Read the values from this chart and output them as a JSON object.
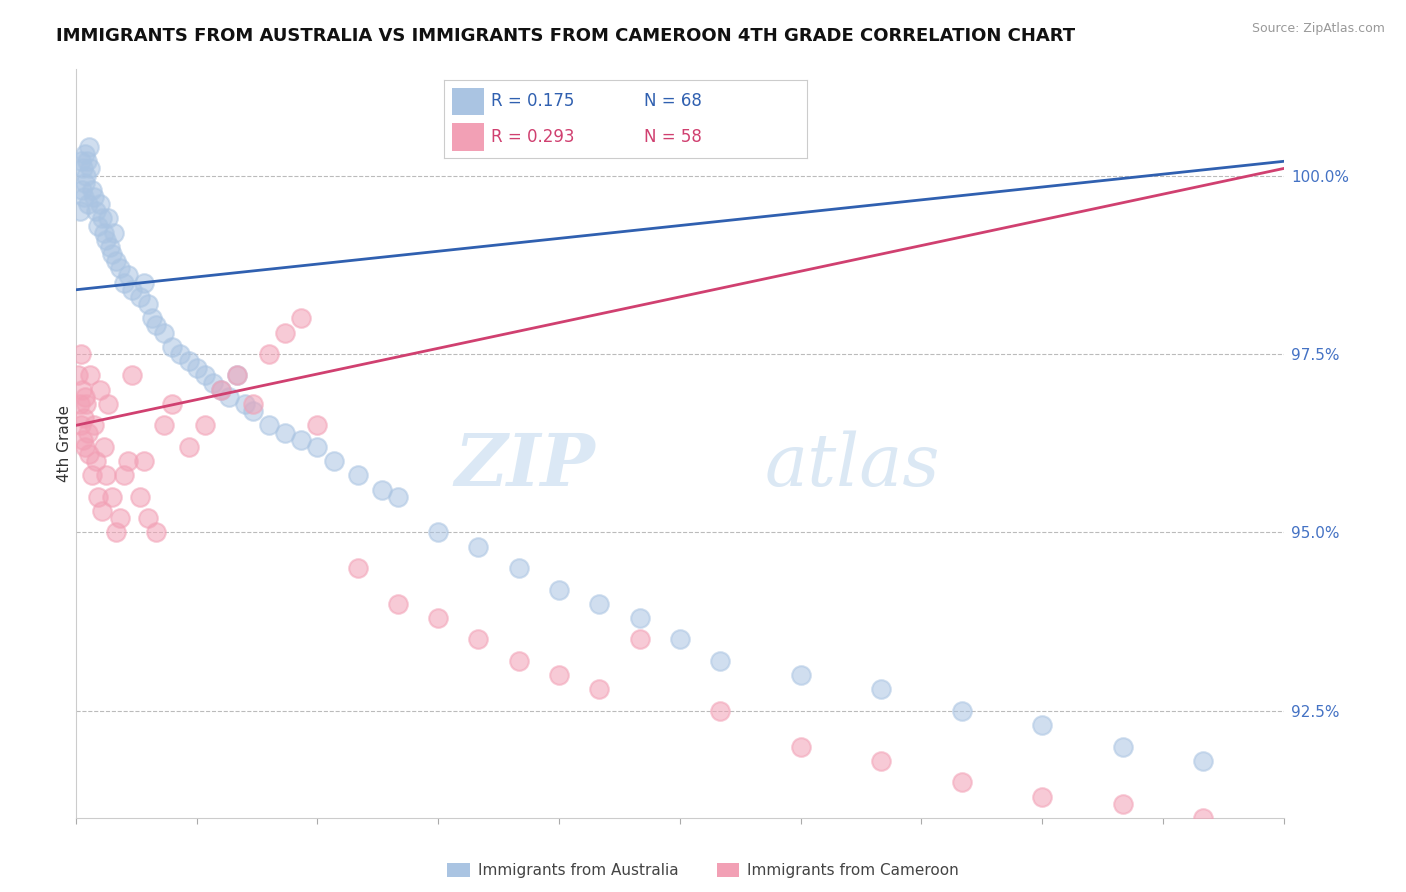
{
  "title": "IMMIGRANTS FROM AUSTRALIA VS IMMIGRANTS FROM CAMEROON 4TH GRADE CORRELATION CHART",
  "source": "Source: ZipAtlas.com",
  "ylabel": "4th Grade",
  "yaxis_ticks": [
    92.5,
    95.0,
    97.5,
    100.0
  ],
  "yaxis_labels": [
    "92.5%",
    "95.0%",
    "97.5%",
    "100.0%"
  ],
  "xmin": 0.0,
  "xmax": 15.0,
  "ymin": 91.0,
  "ymax": 101.5,
  "blue_R": 0.175,
  "blue_N": 68,
  "pink_R": 0.293,
  "pink_N": 58,
  "blue_color": "#aac4e2",
  "pink_color": "#f2a0b5",
  "blue_line_color": "#3060b0",
  "pink_line_color": "#d04070",
  "legend_blue_label": "Immigrants from Australia",
  "legend_pink_label": "Immigrants from Cameroon",
  "watermark_zip": "ZIP",
  "watermark_atlas": "atlas",
  "blue_line_x0": 0.0,
  "blue_line_y0": 98.4,
  "blue_line_x1": 15.0,
  "blue_line_y1": 100.2,
  "pink_line_x0": 0.0,
  "pink_line_y0": 96.5,
  "pink_line_x1": 15.0,
  "pink_line_y1": 100.1,
  "blue_x": [
    0.05,
    0.07,
    0.08,
    0.09,
    0.1,
    0.11,
    0.12,
    0.13,
    0.14,
    0.15,
    0.16,
    0.18,
    0.2,
    0.22,
    0.25,
    0.28,
    0.3,
    0.32,
    0.35,
    0.38,
    0.4,
    0.42,
    0.45,
    0.48,
    0.5,
    0.55,
    0.6,
    0.65,
    0.7,
    0.8,
    0.85,
    0.9,
    0.95,
    1.0,
    1.1,
    1.2,
    1.3,
    1.4,
    1.5,
    1.6,
    1.7,
    1.8,
    1.9,
    2.0,
    2.1,
    2.2,
    2.4,
    2.6,
    2.8,
    3.0,
    3.2,
    3.5,
    3.8,
    4.0,
    4.5,
    5.0,
    5.5,
    6.0,
    6.5,
    7.0,
    7.5,
    8.0,
    9.0,
    10.0,
    11.0,
    12.0,
    13.0,
    14.0
  ],
  "blue_y": [
    99.5,
    100.2,
    99.8,
    100.1,
    99.7,
    100.3,
    99.9,
    100.0,
    100.2,
    99.6,
    100.4,
    100.1,
    99.8,
    99.7,
    99.5,
    99.3,
    99.6,
    99.4,
    99.2,
    99.1,
    99.4,
    99.0,
    98.9,
    99.2,
    98.8,
    98.7,
    98.5,
    98.6,
    98.4,
    98.3,
    98.5,
    98.2,
    98.0,
    97.9,
    97.8,
    97.6,
    97.5,
    97.4,
    97.3,
    97.2,
    97.1,
    97.0,
    96.9,
    97.2,
    96.8,
    96.7,
    96.5,
    96.4,
    96.3,
    96.2,
    96.0,
    95.8,
    95.6,
    95.5,
    95.0,
    94.8,
    94.5,
    94.2,
    94.0,
    93.8,
    93.5,
    93.2,
    93.0,
    92.8,
    92.5,
    92.3,
    92.0,
    91.8
  ],
  "pink_x": [
    0.03,
    0.05,
    0.06,
    0.07,
    0.08,
    0.09,
    0.1,
    0.11,
    0.12,
    0.13,
    0.15,
    0.17,
    0.18,
    0.2,
    0.22,
    0.25,
    0.28,
    0.3,
    0.32,
    0.35,
    0.38,
    0.4,
    0.45,
    0.5,
    0.55,
    0.6,
    0.65,
    0.7,
    0.8,
    0.85,
    0.9,
    1.0,
    1.1,
    1.2,
    1.4,
    1.6,
    1.8,
    2.0,
    2.2,
    2.4,
    2.6,
    2.8,
    3.0,
    3.5,
    4.0,
    4.5,
    5.0,
    5.5,
    6.0,
    6.5,
    7.0,
    8.0,
    9.0,
    10.0,
    11.0,
    12.0,
    13.0,
    14.0
  ],
  "pink_y": [
    97.2,
    96.8,
    97.5,
    96.5,
    97.0,
    96.3,
    96.6,
    96.9,
    96.2,
    96.8,
    96.4,
    96.1,
    97.2,
    95.8,
    96.5,
    96.0,
    95.5,
    97.0,
    95.3,
    96.2,
    95.8,
    96.8,
    95.5,
    95.0,
    95.2,
    95.8,
    96.0,
    97.2,
    95.5,
    96.0,
    95.2,
    95.0,
    96.5,
    96.8,
    96.2,
    96.5,
    97.0,
    97.2,
    96.8,
    97.5,
    97.8,
    98.0,
    96.5,
    94.5,
    94.0,
    93.8,
    93.5,
    93.2,
    93.0,
    92.8,
    93.5,
    92.5,
    92.0,
    91.8,
    91.5,
    91.3,
    91.2,
    91.0
  ]
}
